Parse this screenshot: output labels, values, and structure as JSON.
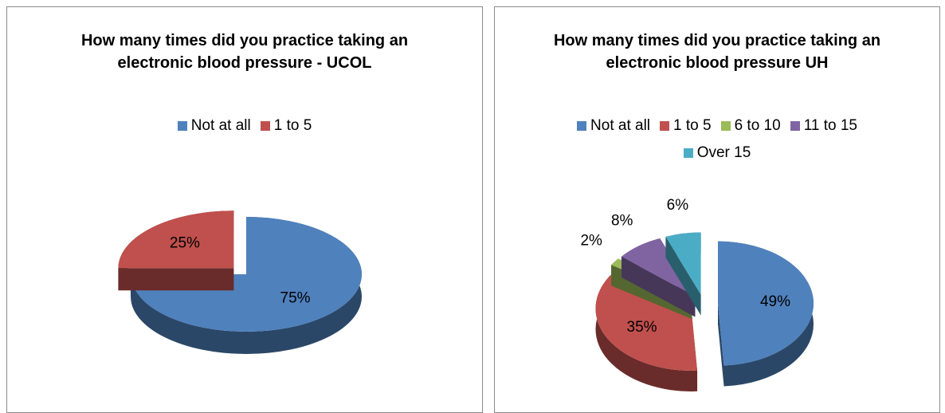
{
  "chart_data": [
    {
      "type": "pie",
      "title": "How many times did you practice taking an electronic blood pressure - UCOL",
      "categories": [
        "Not at all",
        "1 to 5"
      ],
      "values": [
        75,
        25
      ],
      "value_labels": [
        "75%",
        "25%"
      ],
      "colors": [
        "#4f81bd",
        "#c0504d"
      ],
      "legend": "top"
    },
    {
      "type": "pie",
      "title": "How many times did you practice taking an electronic blood pressure UH",
      "categories": [
        "Not at all",
        "1 to 5",
        "6 to 10",
        "11 to 15",
        "Over 15"
      ],
      "values": [
        49,
        35,
        2,
        8,
        6
      ],
      "value_labels": [
        "49%",
        "35%",
        "2%",
        "8%",
        "6%"
      ],
      "colors": [
        "#4f81bd",
        "#c0504d",
        "#9bbb59",
        "#8064a2",
        "#4bacc6"
      ],
      "legend": "top"
    }
  ]
}
